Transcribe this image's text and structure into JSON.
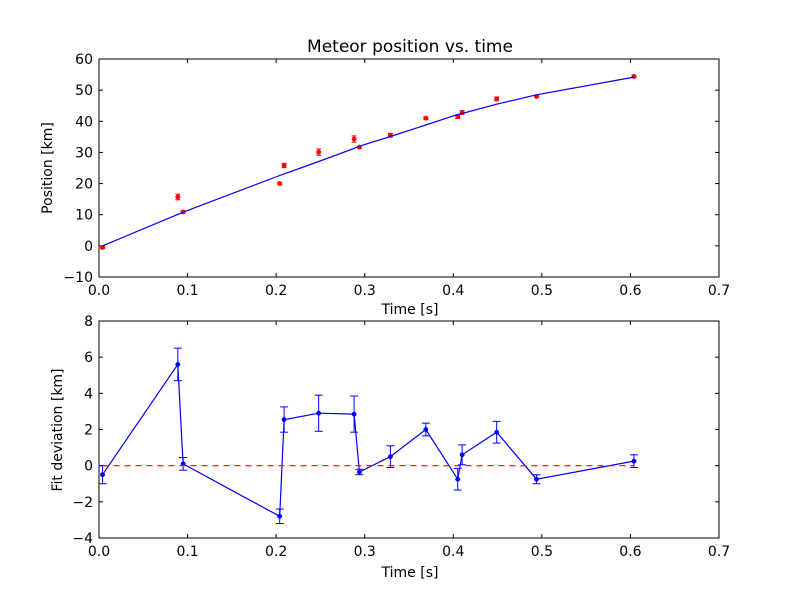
{
  "colors": {
    "fit_line": "#0000ff",
    "data_marker": "#ff0000",
    "deviation": "#0000ff",
    "zero_line": "#ff0000",
    "axes": "#000000"
  },
  "chart_data": [
    {
      "type": "scatter",
      "title": "Meteor position vs. time",
      "xlabel": "Time [s]",
      "ylabel": "Position [km]",
      "xlim": [
        0.0,
        0.7
      ],
      "ylim": [
        -10,
        60
      ],
      "xticks": [
        "0.0",
        "0.1",
        "0.2",
        "0.3",
        "0.4",
        "0.5",
        "0.6",
        "0.7"
      ],
      "yticks": [
        "−10",
        "0",
        "10",
        "20",
        "30",
        "40",
        "50",
        "60"
      ],
      "grid": false,
      "series": [
        {
          "style": "markers-with-errorbars",
          "x": [
            0.004,
            0.089,
            0.095,
            0.204,
            0.209,
            0.248,
            0.288,
            0.294,
            0.329,
            0.369,
            0.405,
            0.41,
            0.449,
            0.494,
            0.604
          ],
          "y": [
            -0.5,
            15.7,
            10.9,
            20.0,
            25.8,
            30.1,
            34.3,
            31.7,
            35.5,
            41.0,
            41.5,
            42.8,
            47.2,
            48.0,
            54.4
          ],
          "yerr": [
            0.4,
            0.9,
            0.4,
            0.4,
            0.7,
            1.0,
            1.0,
            0.3,
            0.6,
            0.4,
            0.6,
            0.6,
            0.6,
            0.3,
            0.4
          ]
        },
        {
          "style": "line",
          "x": [
            0.004,
            0.089,
            0.095,
            0.204,
            0.209,
            0.248,
            0.288,
            0.294,
            0.329,
            0.369,
            0.405,
            0.41,
            0.449,
            0.494,
            0.604
          ],
          "y": [
            0.0,
            10.1,
            10.8,
            22.6,
            23.1,
            27.1,
            31.3,
            32.0,
            35.1,
            38.8,
            42.2,
            42.5,
            45.5,
            48.5,
            54.2
          ]
        }
      ]
    },
    {
      "type": "line",
      "title": "",
      "xlabel": "Time [s]",
      "ylabel": "Fit deviation [km]",
      "xlim": [
        0.0,
        0.7
      ],
      "ylim": [
        -4,
        8
      ],
      "xticks": [
        "0.0",
        "0.1",
        "0.2",
        "0.3",
        "0.4",
        "0.5",
        "0.6",
        "0.7"
      ],
      "yticks": [
        "−4",
        "−2",
        "0",
        "2",
        "4",
        "6",
        "8"
      ],
      "grid": false,
      "series": [
        {
          "style": "line-markers-with-errorbars",
          "x": [
            0.004,
            0.089,
            0.095,
            0.204,
            0.209,
            0.248,
            0.288,
            0.294,
            0.329,
            0.369,
            0.405,
            0.41,
            0.449,
            0.494,
            0.604
          ],
          "y": [
            -0.5,
            5.6,
            0.1,
            -2.8,
            2.55,
            2.9,
            2.85,
            -0.35,
            0.5,
            2.0,
            -0.75,
            0.6,
            1.85,
            -0.75,
            0.25
          ],
          "yerr": [
            0.5,
            0.9,
            0.35,
            0.4,
            0.7,
            1.0,
            1.0,
            0.15,
            0.6,
            0.35,
            0.6,
            0.55,
            0.6,
            0.25,
            0.35
          ]
        },
        {
          "style": "dashed-line",
          "x": [
            0.004,
            0.604
          ],
          "y": [
            0,
            0
          ]
        }
      ]
    }
  ]
}
